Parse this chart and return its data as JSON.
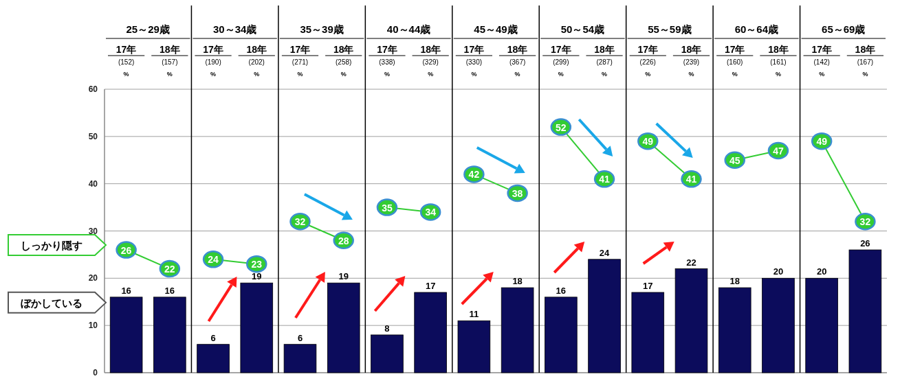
{
  "chart_data": {
    "type": "bar",
    "categories": [
      "17年\n(152)\n%",
      "18年\n(157)\n%",
      "17年\n(190)\n%",
      "18年\n(202)\n%",
      "17年\n(271)\n%",
      "18年\n(258)\n%",
      "17年\n(338)\n%",
      "18年\n(329)\n%",
      "17年\n(330)\n%",
      "18年\n(367)\n%",
      "17年\n(299)\n%",
      "18年\n(287)\n%",
      "17年\n(226)\n%",
      "18年\n(239)\n%",
      "17年\n(160)\n%",
      "18年\n(161)\n%",
      "17年\n(142)\n%",
      "18年\n(167)\n%"
    ],
    "annotations": [
      "25～29歳",
      "30～34歳",
      "35～39歳",
      "40～44歳",
      "45～49歳",
      "50～54歳",
      "55～59歳",
      "60～64歳",
      "65～69歳"
    ],
    "series": [
      {
        "name": "ぼかしている",
        "color": "#0c0c5c",
        "values": [
          16,
          16,
          6,
          19,
          6,
          19,
          8,
          17,
          11,
          18,
          16,
          24,
          17,
          22,
          18,
          20,
          20,
          26
        ]
      },
      {
        "name": "しっかり隠す",
        "type": "line",
        "color": "#33cc33",
        "values": [
          26,
          22,
          null,
          null,
          null,
          null,
          null,
          null,
          null,
          null,
          null,
          null,
          null,
          null,
          null,
          null,
          null,
          null
        ]
      },
      {
        "type": "line",
        "color": "#33cc33",
        "values": [
          null,
          null,
          24,
          23,
          null,
          null,
          null,
          null,
          null,
          null,
          null,
          null,
          null,
          null,
          null,
          null,
          null,
          null
        ]
      },
      {
        "type": "line",
        "color": "#33cc33",
        "values": [
          null,
          null,
          null,
          null,
          32,
          28,
          null,
          null,
          null,
          null,
          null,
          null,
          null,
          null,
          null,
          null,
          null,
          null
        ]
      },
      {
        "type": "line",
        "color": "#33cc33",
        "values": [
          null,
          null,
          null,
          null,
          null,
          null,
          35,
          34,
          null,
          null,
          null,
          null,
          null,
          null,
          null,
          null,
          null,
          null
        ]
      },
      {
        "type": "line",
        "color": "#33cc33",
        "values": [
          null,
          null,
          null,
          null,
          null,
          null,
          null,
          null,
          42,
          38,
          null,
          null,
          null,
          null,
          null,
          null,
          null,
          null
        ]
      },
      {
        "type": "line",
        "color": "#33cc33",
        "values": [
          null,
          null,
          null,
          null,
          null,
          null,
          null,
          null,
          null,
          null,
          52,
          41,
          null,
          null,
          null,
          null,
          null,
          null
        ]
      },
      {
        "type": "line",
        "color": "#33cc33",
        "values": [
          null,
          null,
          null,
          null,
          null,
          null,
          null,
          null,
          null,
          null,
          null,
          null,
          49,
          41,
          null,
          null,
          null,
          null
        ]
      },
      {
        "type": "line",
        "color": "#33cc33",
        "values": [
          null,
          null,
          null,
          null,
          null,
          null,
          null,
          null,
          null,
          null,
          null,
          null,
          null,
          null,
          45,
          47,
          null,
          null
        ]
      },
      {
        "type": "line",
        "color": "#33cc33",
        "values": [
          null,
          null,
          null,
          null,
          null,
          null,
          null,
          null,
          null,
          null,
          null,
          null,
          null,
          null,
          null,
          null,
          49,
          32
        ]
      }
    ],
    "ylim": [
      0,
      60
    ],
    "yticks": [
      0,
      10,
      20,
      30,
      40,
      50,
      60
    ],
    "grid": "y",
    "legend": "left",
    "marker": "circle",
    "data_labels": true
  }
}
